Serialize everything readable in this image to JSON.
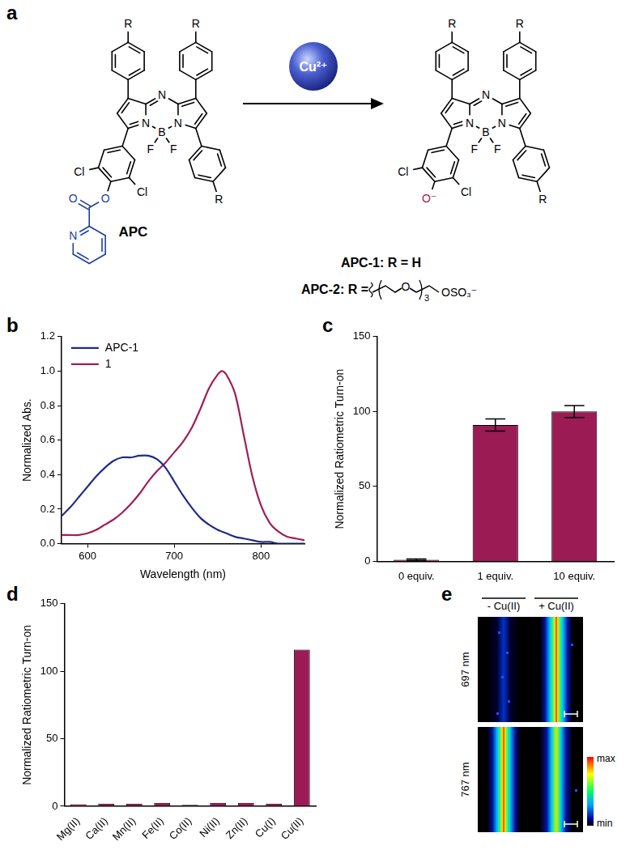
{
  "panel_labels": [
    "a",
    "b",
    "c",
    "d",
    "e"
  ],
  "scheme": {
    "reactant": "APC",
    "reagent": "Cu²⁺",
    "substituent_label": "R",
    "atoms": {
      "N": "N",
      "B": "B",
      "F": "F",
      "Cl": "Cl",
      "O": "O"
    },
    "product_oxygen": "O⁻",
    "definitions": [
      "APC-1: R = H",
      "APC-2: R ="
    ],
    "chain": {
      "atom": "O",
      "repeat": "3",
      "end": "OSO₃⁻"
    }
  },
  "chart_data": [
    {
      "type": "line",
      "x_label": "Wavelength (nm)",
      "y_label": "Normalized Abs.",
      "x": [
        570,
        580,
        590,
        600,
        610,
        620,
        630,
        640,
        650,
        660,
        670,
        680,
        690,
        700,
        710,
        720,
        730,
        740,
        750,
        755,
        760,
        770,
        780,
        790,
        800,
        810,
        820,
        830,
        840,
        850
      ],
      "series": [
        {
          "name": "APC-1",
          "color": "#1f2d86",
          "values": [
            0.16,
            0.21,
            0.27,
            0.33,
            0.39,
            0.44,
            0.48,
            0.5,
            0.5,
            0.51,
            0.51,
            0.49,
            0.44,
            0.36,
            0.28,
            0.21,
            0.15,
            0.11,
            0.08,
            0.07,
            0.06,
            0.04,
            0.03,
            0.02,
            0.01,
            0.01,
            0,
            0,
            0,
            0
          ]
        },
        {
          "name": "1",
          "color": "#9e1e57",
          "values": [
            0.05,
            0.05,
            0.05,
            0.06,
            0.08,
            0.11,
            0.14,
            0.18,
            0.23,
            0.29,
            0.36,
            0.42,
            0.47,
            0.53,
            0.59,
            0.67,
            0.78,
            0.9,
            0.98,
            1.0,
            0.98,
            0.87,
            0.63,
            0.39,
            0.22,
            0.12,
            0.07,
            0.04,
            0.03,
            0.02
          ]
        }
      ],
      "xlim": [
        570,
        850
      ],
      "xticks": [
        600,
        700,
        800
      ],
      "ylim": [
        0,
        1.2
      ],
      "yticks": [
        {
          "value": 0,
          "label": "0.0"
        },
        0.2,
        0.4,
        0.6,
        0.8,
        {
          "value": 1,
          "label": "1.0"
        },
        1.2
      ],
      "grid": false,
      "legend": "upper left"
    },
    {
      "type": "bar",
      "y_label": "Normalized Ratiometric Turn-on",
      "categories": [
        "0 equiv.",
        "1 equiv.",
        "10 equiv."
      ],
      "values": [
        1,
        91,
        100
      ],
      "errors": [
        0.5,
        4,
        4
      ],
      "color": "#9b1b55",
      "ylim": [
        0,
        150
      ],
      "yticks": [
        0,
        50,
        100,
        150
      ],
      "grid": false
    },
    {
      "type": "bar",
      "y_label": "Normalized Ratiometric Turn-on",
      "categories": [
        "Mg(II)",
        "Ca(II)",
        "Mn(II)",
        "Fe(II)",
        "Co(II)",
        "Ni(II)",
        "Zn(II)",
        "Cu(I)",
        "Cu(II)"
      ],
      "values": [
        1.5,
        2,
        2,
        2.5,
        1,
        2.5,
        2.5,
        2,
        116
      ],
      "color": "#9b1b55",
      "ylim": [
        0,
        150
      ],
      "yticks": [
        0,
        50,
        100,
        150
      ],
      "grid": false
    }
  ],
  "image": {
    "columns": [
      "- Cu(II)",
      "+ Cu(II)"
    ],
    "rows": [
      "697 nm",
      "767 nm"
    ],
    "colorbar": [
      "max",
      "min"
    ]
  }
}
